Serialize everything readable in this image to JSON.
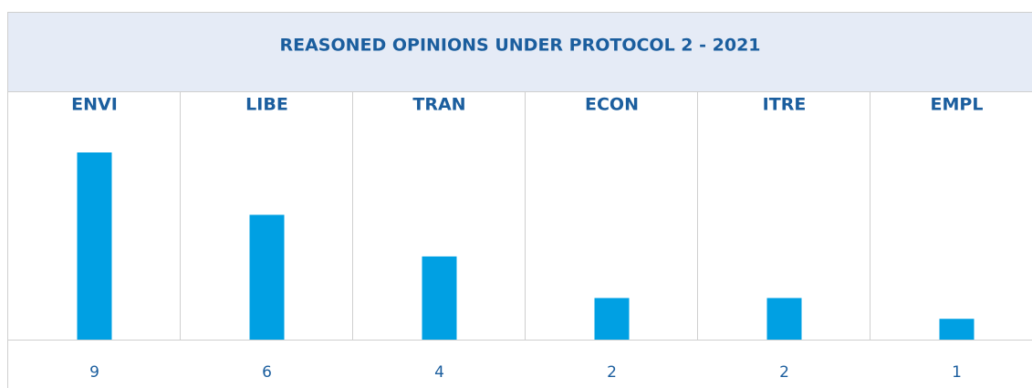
{
  "chart_data": {
    "type": "bar",
    "title": "REASONED OPINIONS UNDER PROTOCOL 2 - 2021",
    "categories": [
      "ENVI",
      "LIBE",
      "TRAN",
      "ECON",
      "ITRE",
      "EMPL"
    ],
    "values": [
      9,
      6,
      4,
      2,
      2,
      1
    ],
    "color": "#00a0e3"
  }
}
